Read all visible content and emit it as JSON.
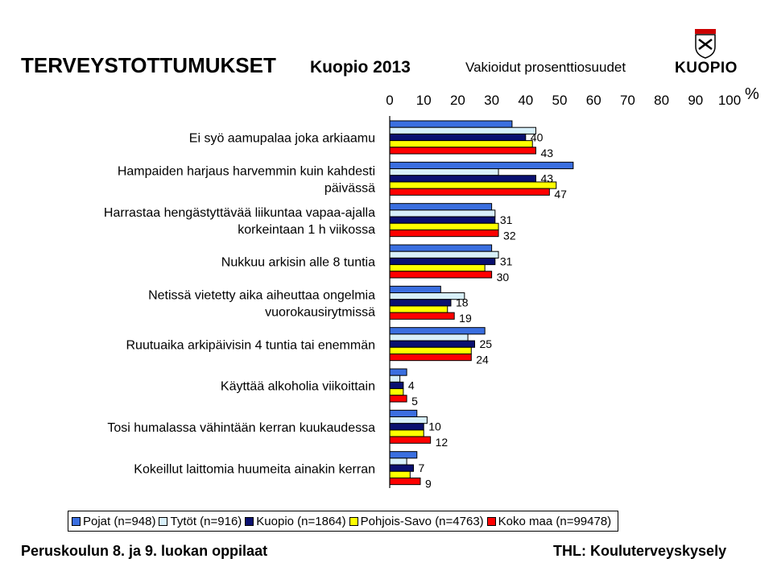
{
  "header": {
    "title": "TERVEYSTOTTUMUKSET",
    "subtitle": "Kuopio 2013",
    "caption": "Vakioidut prosenttiosuudet",
    "unit": "%"
  },
  "logo": {
    "text": "KUOPIO",
    "icon": "coat-of-arms-icon"
  },
  "footer": {
    "left": "Peruskoulun 8. ja 9. luokan oppilaat",
    "right": "THL: Kouluterveyskysely"
  },
  "chart_data": {
    "type": "bar",
    "orientation": "horizontal",
    "xlim": [
      0,
      100
    ],
    "xticks": [
      0,
      10,
      20,
      30,
      40,
      50,
      60,
      70,
      80,
      90,
      100
    ],
    "grid": false,
    "legend_position": "bottom",
    "categories": [
      [
        "Ei syö aamupalaa joka arkiaamu"
      ],
      [
        "Hampaiden harjaus harvemmin kuin kahdesti",
        "päivässä"
      ],
      [
        "Harrastaa hengästyttävää liikuntaa vapaa-ajalla",
        "korkeintaan 1 h viikossa"
      ],
      [
        "Nukkuu arkisin alle 8 tuntia"
      ],
      [
        "Netissä vietetty aika aiheuttaa ongelmia",
        "vuorokausirytmissä"
      ],
      [
        "Ruutuaika arkipäivisin 4 tuntia tai enemmän"
      ],
      [
        "Käyttää alkoholia viikoittain"
      ],
      [
        "Tosi humalassa vähintään kerran kuukaudessa"
      ],
      [
        "Kokeillut laittomia huumeita ainakin kerran"
      ]
    ],
    "series": [
      {
        "name": "Pojat (n=948)",
        "color": "#3B6FE0",
        "values": [
          36,
          54,
          30,
          30,
          15,
          28,
          5,
          8,
          8
        ]
      },
      {
        "name": "Tytöt (n=916)",
        "color": "#D8F0FA",
        "values": [
          43,
          32,
          31,
          32,
          22,
          23,
          3,
          11,
          5
        ]
      },
      {
        "name": "Kuopio (n=1864)",
        "color": "#0A1070",
        "values": [
          40,
          43,
          31,
          31,
          18,
          25,
          4,
          10,
          7
        ]
      },
      {
        "name": "Pohjois-Savo (n=4763)",
        "color": "#FFFF00",
        "values": [
          42,
          49,
          32,
          28,
          17,
          24,
          4,
          10,
          6
        ]
      },
      {
        "name": "Koko maa (n=99478)",
        "color": "#FF0000",
        "values": [
          43,
          47,
          32,
          30,
          19,
          24,
          5,
          12,
          9
        ]
      }
    ],
    "data_labels": [
      {
        "category": 0,
        "labels": [
          "40",
          "43"
        ]
      },
      {
        "category": 1,
        "labels": [
          "43",
          "47"
        ]
      },
      {
        "category": 2,
        "labels": [
          "31",
          "32"
        ]
      },
      {
        "category": 3,
        "labels": [
          "31",
          "30"
        ]
      },
      {
        "category": 4,
        "labels": [
          "18",
          "19"
        ]
      },
      {
        "category": 5,
        "labels": [
          "25",
          "24"
        ]
      },
      {
        "category": 6,
        "labels": [
          "4",
          "5"
        ]
      },
      {
        "category": 7,
        "labels": [
          "10",
          "12"
        ]
      },
      {
        "category": 8,
        "labels": [
          "7",
          "9"
        ]
      }
    ]
  }
}
